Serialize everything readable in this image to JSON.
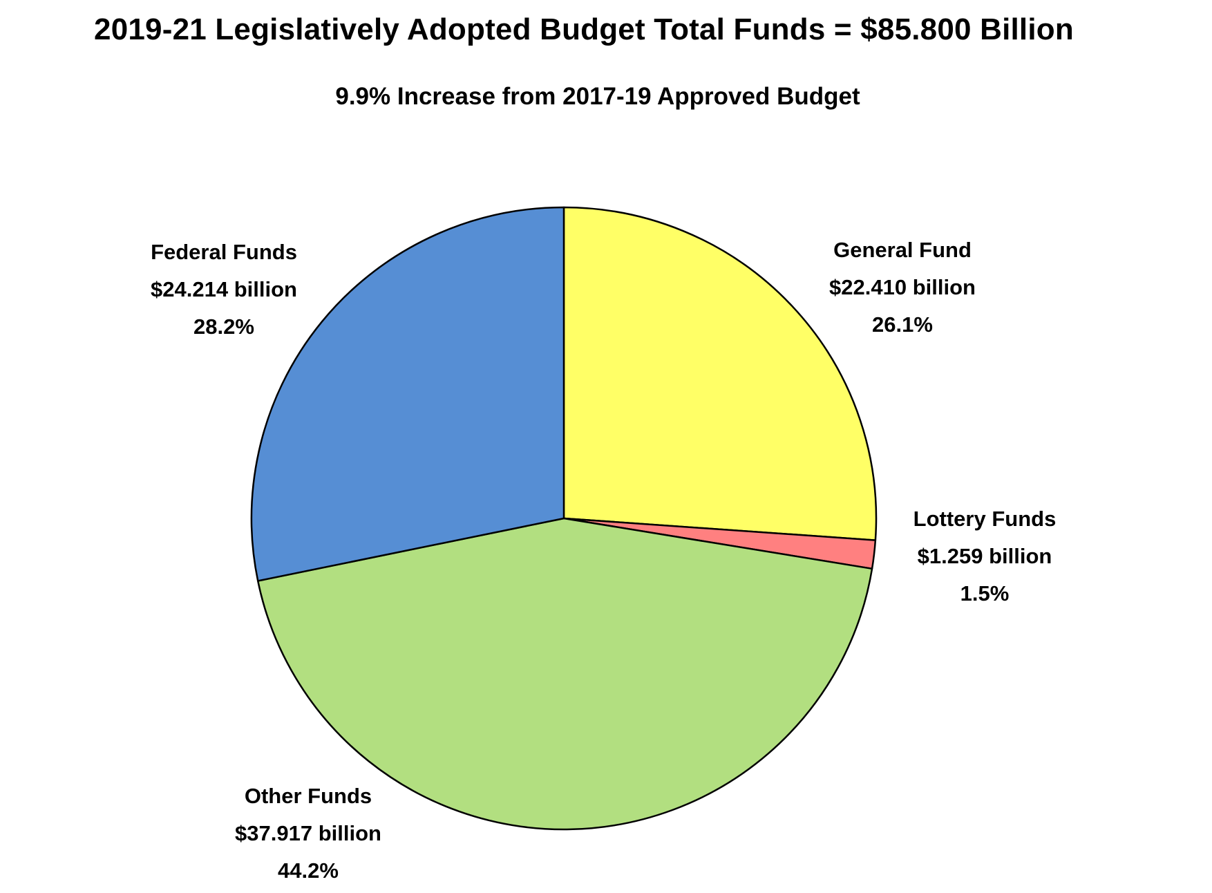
{
  "chart_data": {
    "type": "pie",
    "title": "2019-21 Legislatively Adopted Budget Total Funds = $85.800 Billion",
    "subtitle": "9.9% Increase from 2017-19 Approved Budget",
    "unit": "billion",
    "total": 85.8,
    "slices": [
      {
        "name": "General Fund",
        "value": 22.41,
        "value_label": "$22.410 billion",
        "percent_label": "26.1%",
        "color": "#FFFF66"
      },
      {
        "name": "Lottery Funds",
        "value": 1.259,
        "value_label": "$1.259 billion",
        "percent_label": "1.5%",
        "color": "#FF8080"
      },
      {
        "name": "Other Funds",
        "value": 37.917,
        "value_label": "$37.917 billion",
        "percent_label": "44.2%",
        "color": "#B2DF80"
      },
      {
        "name": "Federal Funds",
        "value": 24.214,
        "value_label": "$24.214 billion",
        "percent_label": "28.2%",
        "color": "#568ED4"
      }
    ],
    "start_angle": "12 o'clock",
    "direction": "clockwise",
    "legend": "none"
  }
}
